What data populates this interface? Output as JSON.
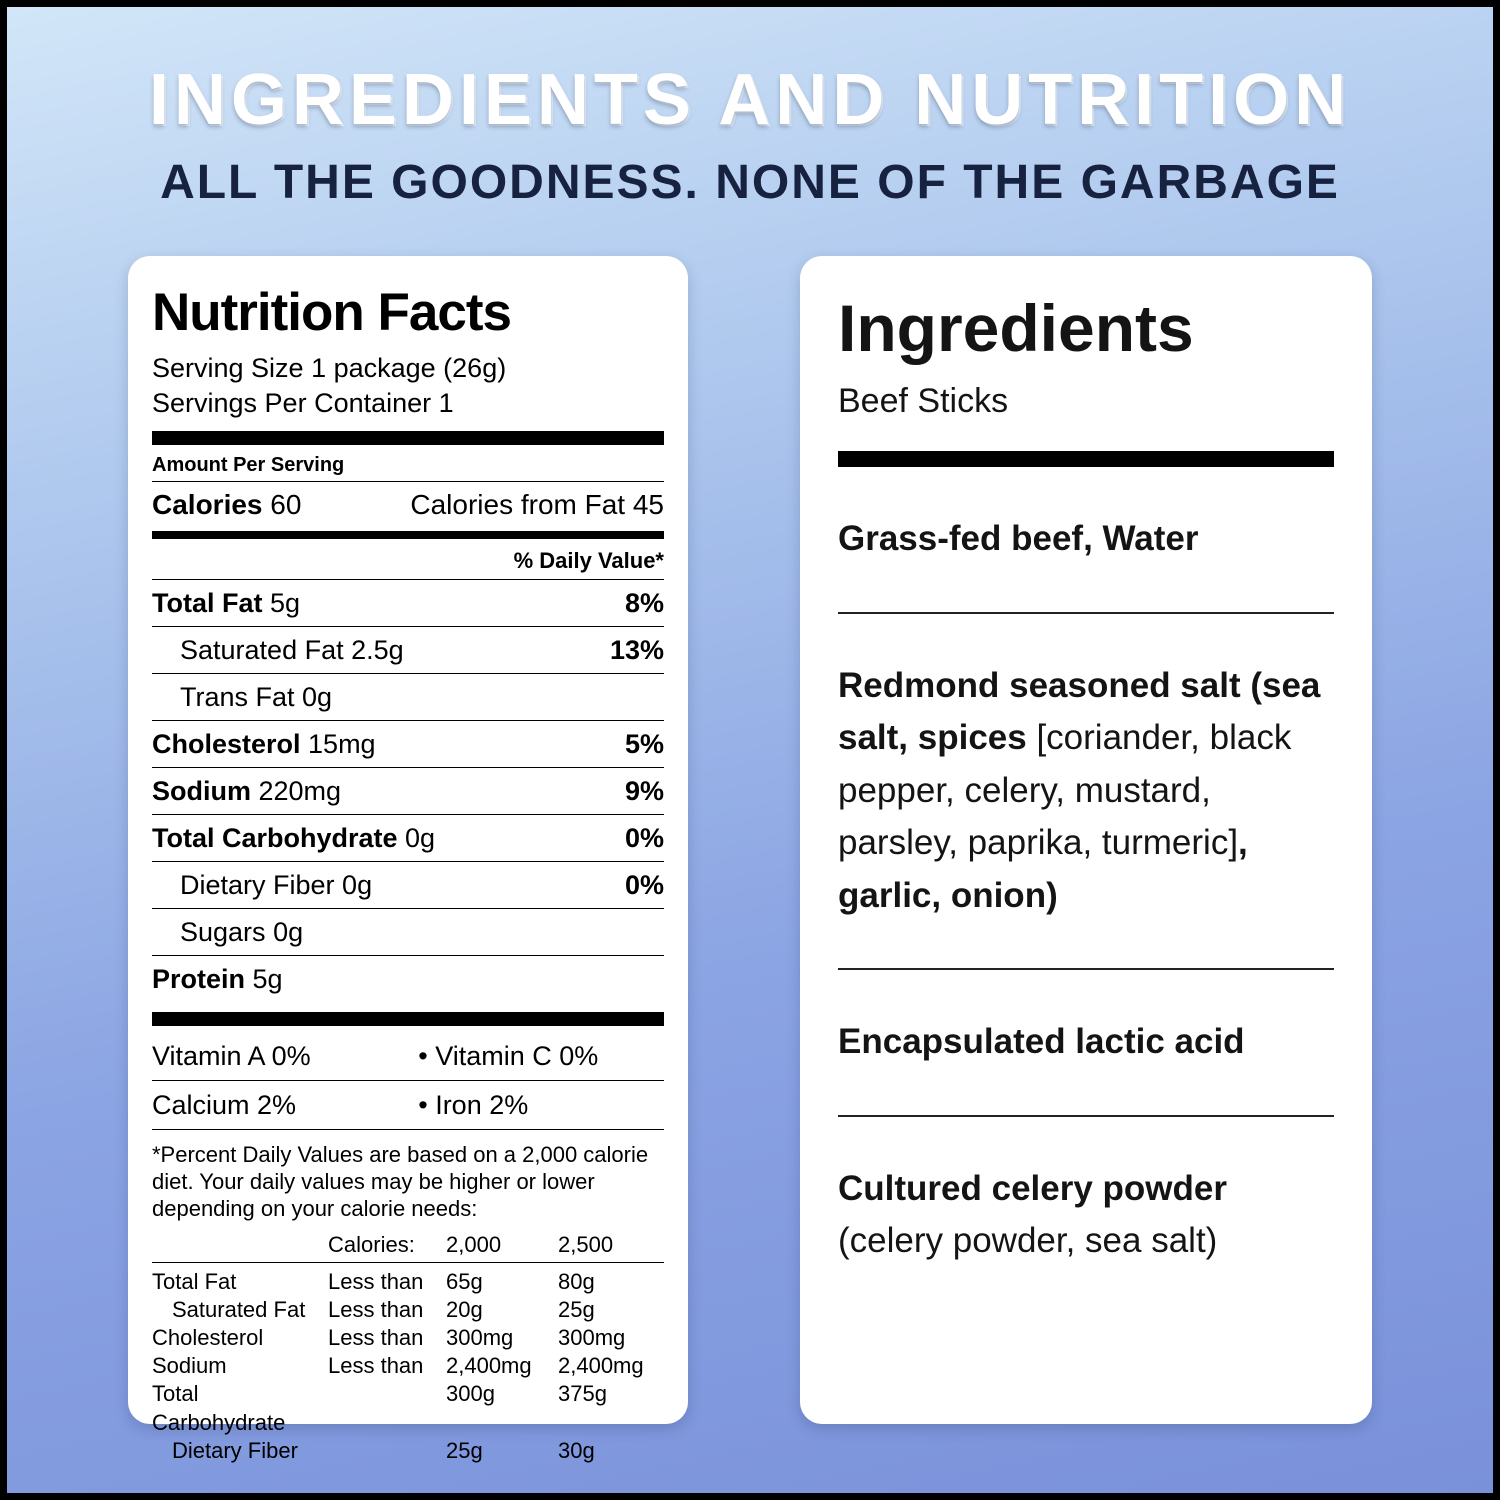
{
  "header": {
    "title": "INGREDIENTS AND NUTRITION",
    "subtitle": "ALL THE GOODNESS. NONE OF THE GARBAGE"
  },
  "nutrition": {
    "title": "Nutrition Facts",
    "serving_size": "Serving Size 1 package (26g)",
    "servings_per_container": "Servings Per Container 1",
    "amount_per_serving": "Amount Per Serving",
    "calories_label": "Calories",
    "calories_value": "60",
    "calories_from_fat": "Calories from Fat 45",
    "daily_value_header": "% Daily Value*",
    "rows": [
      {
        "name": "Total Fat",
        "amount": "5g",
        "dv": "8%",
        "bold": true,
        "indent": false
      },
      {
        "name": "Saturated Fat",
        "amount": "2.5g",
        "dv": "13%",
        "bold": false,
        "indent": true
      },
      {
        "name": "Trans Fat",
        "amount": "0g",
        "dv": "",
        "bold": false,
        "indent": true
      },
      {
        "name": "Cholesterol",
        "amount": "15mg",
        "dv": "5%",
        "bold": true,
        "indent": false
      },
      {
        "name": "Sodium",
        "amount": "220mg",
        "dv": "9%",
        "bold": true,
        "indent": false
      },
      {
        "name": "Total Carbohydrate",
        "amount": "0g",
        "dv": "0%",
        "bold": true,
        "indent": false
      },
      {
        "name": "Dietary Fiber",
        "amount": "0g",
        "dv": "0%",
        "bold": false,
        "indent": true
      },
      {
        "name": "Sugars",
        "amount": "0g",
        "dv": "",
        "bold": false,
        "indent": true
      },
      {
        "name": "Protein",
        "amount": "5g",
        "dv": "",
        "bold": true,
        "indent": false
      }
    ],
    "vitamin_rows": [
      {
        "left": "Vitamin A 0%",
        "right": "• Vitamin C 0%"
      },
      {
        "left": "Calcium 2%",
        "right": "• Iron 2%"
      }
    ],
    "footnote": "*Percent Daily Values are based on a 2,000 calorie diet. Your daily values may be higher or lower depending on your calorie needs:",
    "reference_table": {
      "header": [
        "",
        "Calories:",
        "2,000",
        "2,500"
      ],
      "rows": [
        {
          "name": "Total Fat",
          "qualifier": "Less than",
          "v2000": "65g",
          "v2500": "80g",
          "indent": false
        },
        {
          "name": "Saturated Fat",
          "qualifier": "Less than",
          "v2000": "20g",
          "v2500": "25g",
          "indent": true
        },
        {
          "name": "Cholesterol",
          "qualifier": "Less than",
          "v2000": "300mg",
          "v2500": "300mg",
          "indent": false
        },
        {
          "name": "Sodium",
          "qualifier": "Less than",
          "v2000": "2,400mg",
          "v2500": "2,400mg",
          "indent": false
        },
        {
          "name": "Total Carbohydrate",
          "qualifier": "",
          "v2000": "300g",
          "v2500": "375g",
          "indent": false
        },
        {
          "name": "Dietary Fiber",
          "qualifier": "",
          "v2000": "25g",
          "v2500": "30g",
          "indent": true
        }
      ]
    }
  },
  "ingredients": {
    "title": "Ingredients",
    "product": "Beef Sticks",
    "sections": [
      {
        "segments": [
          {
            "text": "Grass-fed beef, Water",
            "bold": true
          }
        ]
      },
      {
        "segments": [
          {
            "text": "Redmond seasoned salt (sea salt, spices ",
            "bold": true
          },
          {
            "text": "[coriander, black pepper, celery, mustard, parsley, paprika, turmeric]",
            "bold": false
          },
          {
            "text": ", garlic, onion)",
            "bold": true
          }
        ]
      },
      {
        "segments": [
          {
            "text": "Encapsulated lactic acid",
            "bold": true
          }
        ]
      },
      {
        "segments": [
          {
            "text": "Cultured celery powder",
            "bold": true
          },
          {
            "text": " (celery powder, sea salt)",
            "bold": false
          }
        ]
      }
    ]
  },
  "colors": {
    "background_top": "#d2e6f8",
    "background_bottom": "#7a91da",
    "title_color": "#ffffff",
    "subtitle_color": "#16223f",
    "card_background": "#ffffff",
    "text_color": "#000000"
  }
}
